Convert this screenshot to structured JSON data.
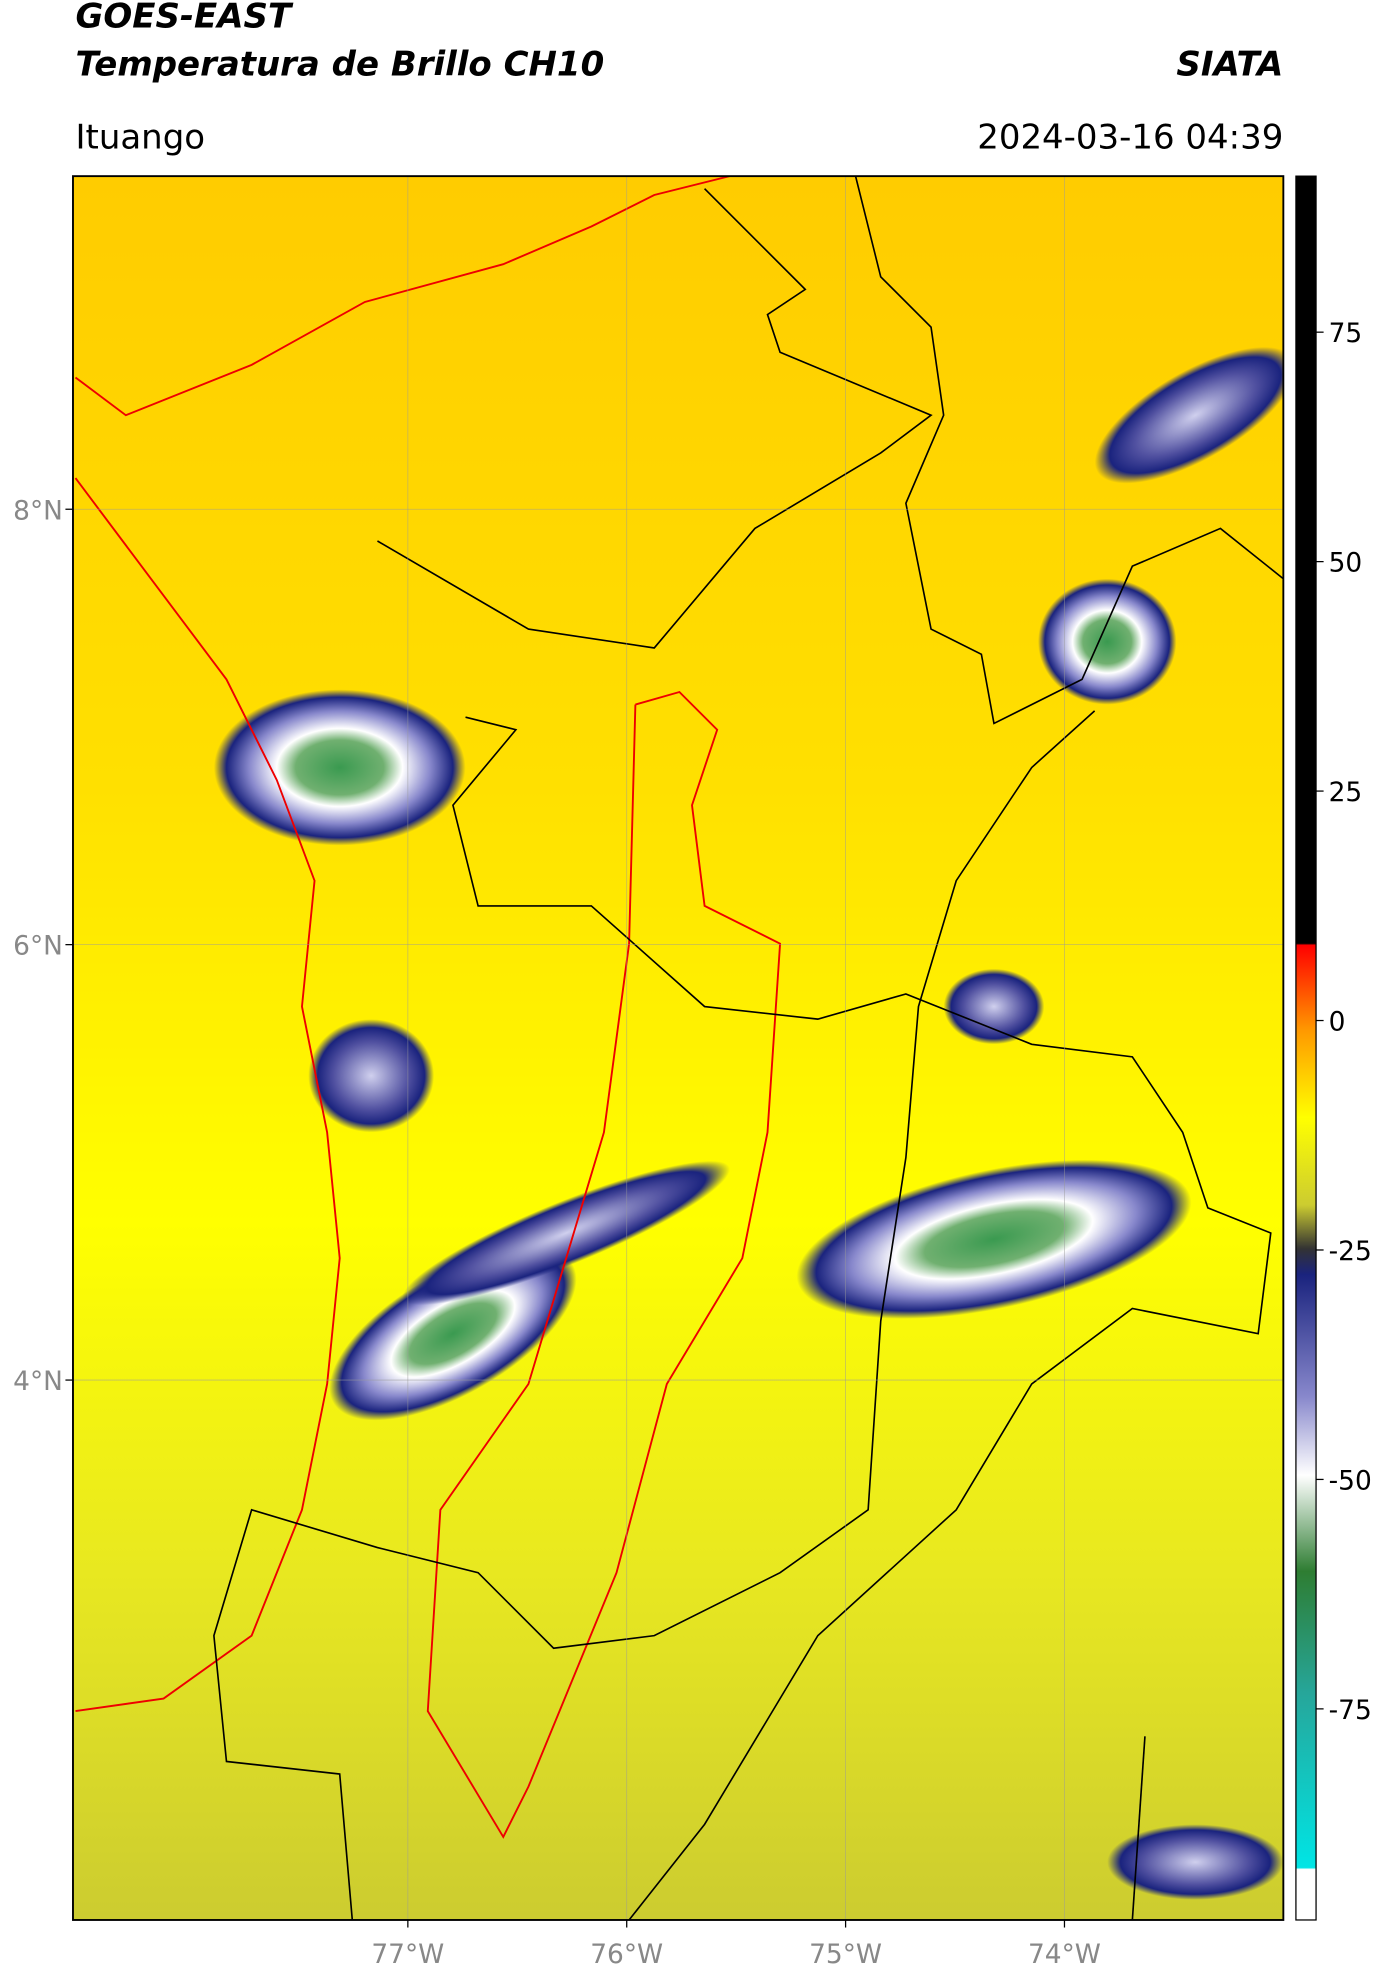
{
  "header": {
    "title": "GOES-EAST",
    "subtitle": "Temperatura de Brillo CH10",
    "source": "SIATA",
    "place": "Ituango",
    "datetime": "2024-03-16 04:39"
  },
  "map": {
    "xlim": [
      -78.53,
      -73.0
    ],
    "ylim": [
      1.52,
      9.53
    ],
    "xticks": [
      {
        "value": -77,
        "label": "77°W"
      },
      {
        "value": -76,
        "label": "76°W"
      },
      {
        "value": -75,
        "label": "75°W"
      },
      {
        "value": -74,
        "label": "74°W"
      }
    ],
    "yticks": [
      {
        "value": 8,
        "label": "8°N"
      },
      {
        "value": 6,
        "label": "6°N"
      },
      {
        "value": 4,
        "label": "4°N"
      }
    ],
    "grid": true
  },
  "colorbar": {
    "lim": [
      -98,
      92
    ],
    "ticks": [
      75,
      50,
      25,
      0,
      -25,
      -50,
      -75
    ]
  }
}
